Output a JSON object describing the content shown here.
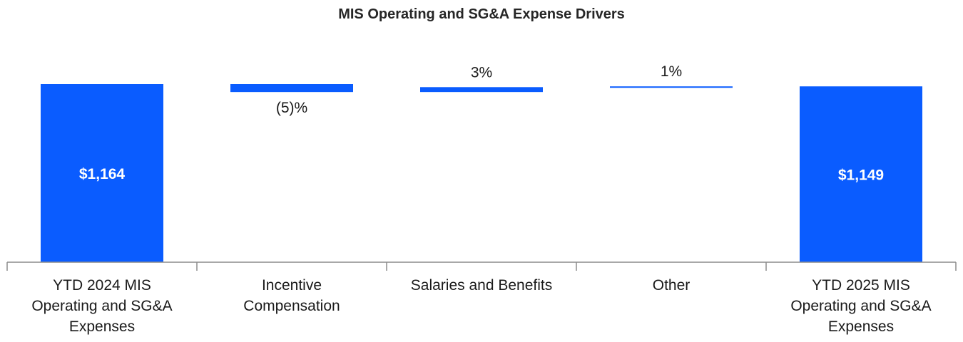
{
  "chart_data": {
    "type": "bar",
    "subtype": "waterfall",
    "title": "MIS Operating and SG&A Expense Drivers",
    "xlabel": "",
    "ylabel": "",
    "grid": false,
    "legend": "none",
    "ylim": [
      0,
      1164
    ],
    "colors": {
      "bar": "#0a5cff",
      "axis": "#8c8c8c",
      "text": "#1a1a1a"
    },
    "categories": [
      [
        "YTD 2024 MIS",
        "Operating and SG&A",
        "Expenses"
      ],
      [
        "Incentive",
        "Compensation"
      ],
      [
        "Salaries and Benefits"
      ],
      [
        "Other"
      ],
      [
        "YTD 2025 MIS",
        "Operating and SG&A",
        "Expenses"
      ]
    ],
    "bars": [
      {
        "kind": "total",
        "value": 1164,
        "label": "$1,164"
      },
      {
        "kind": "delta",
        "value": -52,
        "label": "(5)%"
      },
      {
        "kind": "delta",
        "value": 32,
        "label": "3%"
      },
      {
        "kind": "delta",
        "value": 5,
        "label": "1%"
      },
      {
        "kind": "total",
        "value": 1149,
        "label": "$1,149"
      }
    ]
  }
}
